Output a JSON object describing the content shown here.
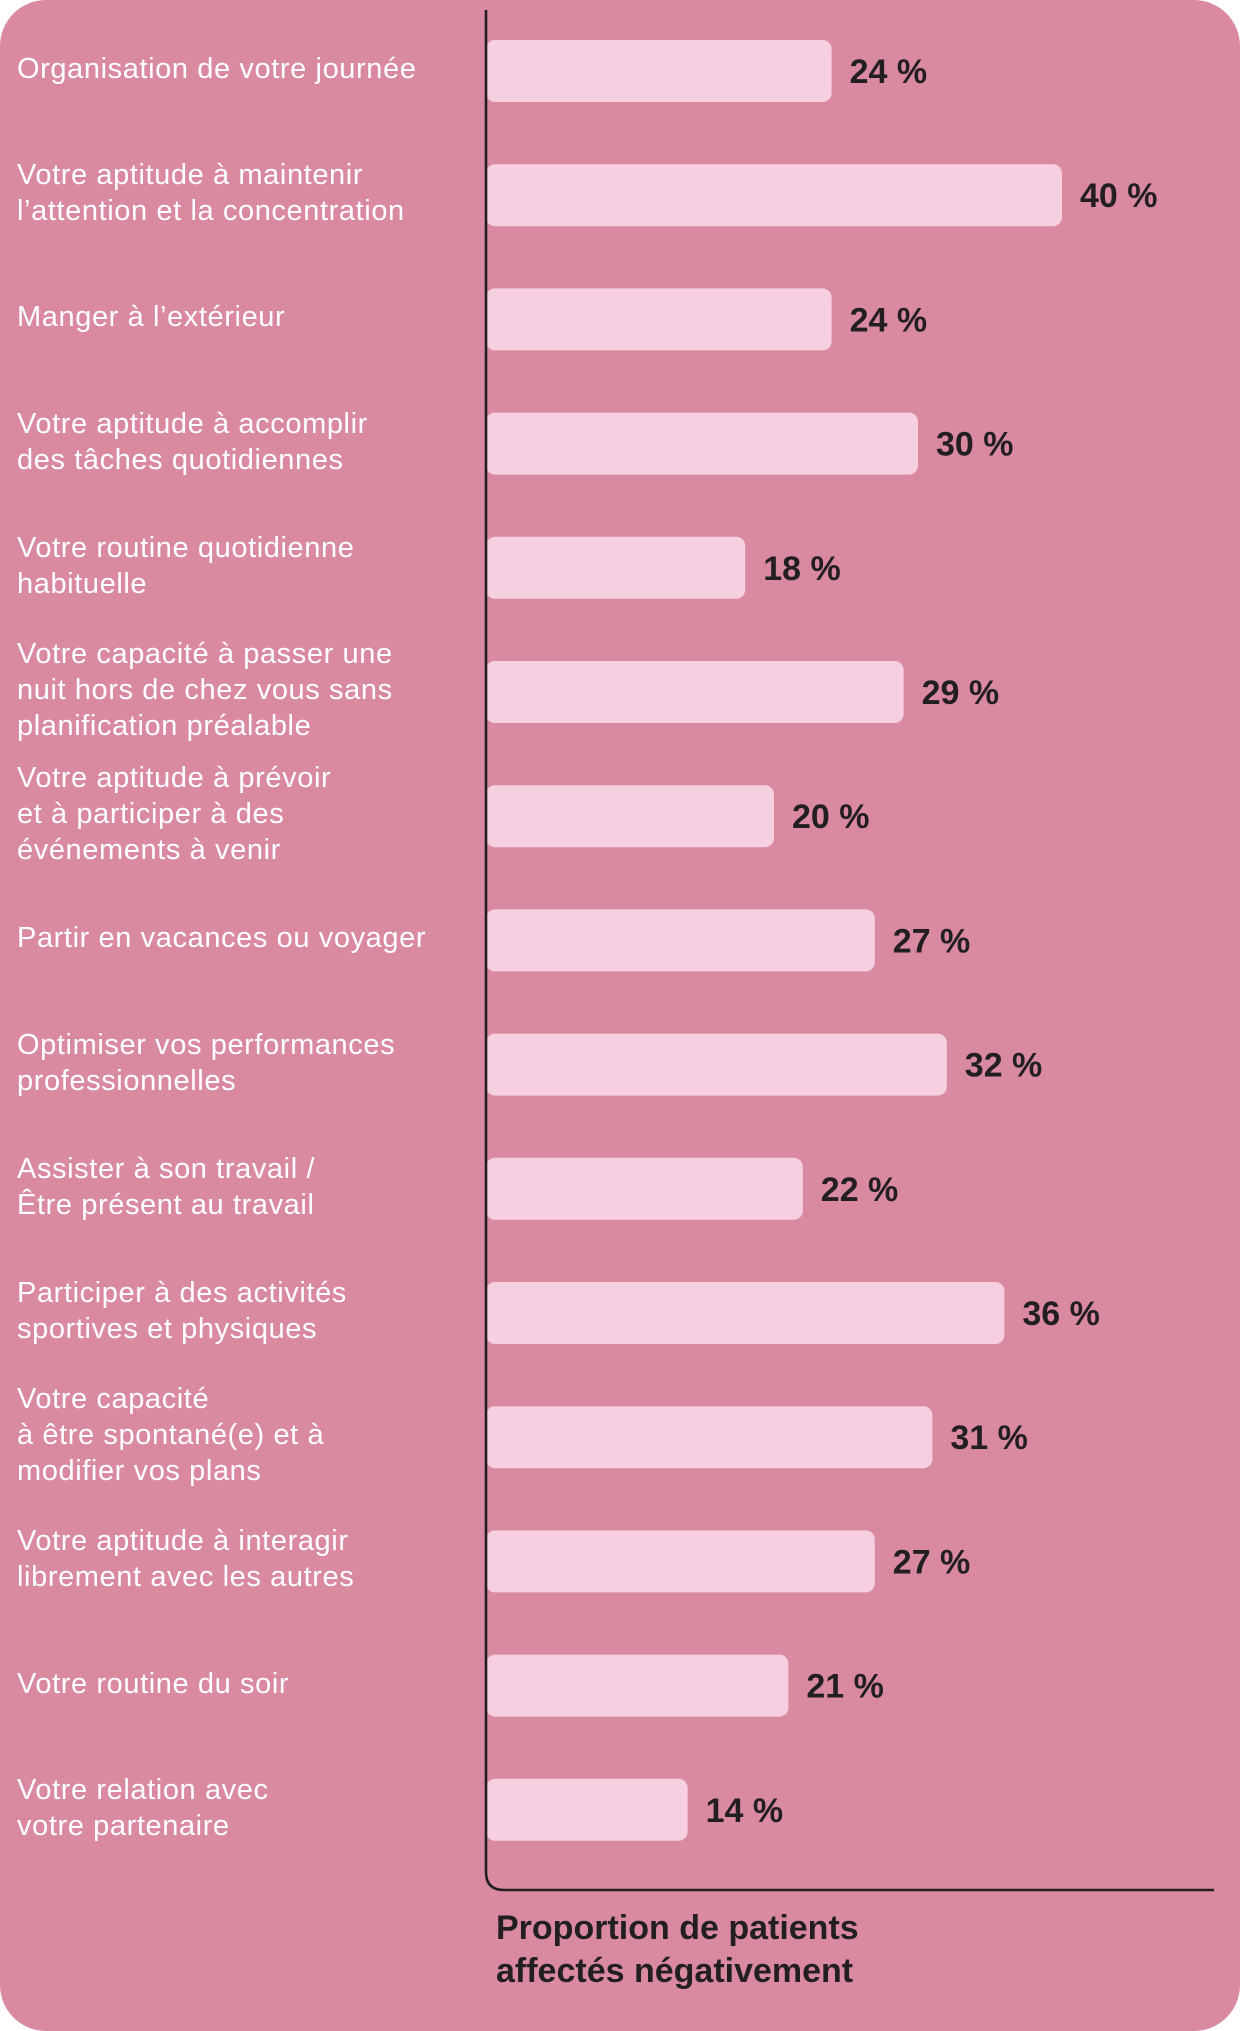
{
  "chart_data": {
    "type": "bar",
    "orientation": "horizontal",
    "categories": [
      "Organisation de votre journée",
      "Votre aptitude à maintenir\nl’attention et la concentration",
      "Manger à l’extérieur",
      "Votre aptitude à accomplir\ndes tâches quotidiennes",
      "Votre routine quotidienne\nhabituelle",
      "Votre capacité à passer une\nnuit hors de chez vous sans\nplanification préalable",
      "Votre aptitude à prévoir\net à participer à des\névénements à venir",
      "Partir en vacances ou voyager",
      "Optimiser vos performances\nprofessionnelles",
      "Assister à son travail /\nÊtre présent au travail",
      "Participer à des activités\nsportives et physiques",
      "Votre capacité\nà être spontané(e) et à\nmodifier vos plans",
      "Votre aptitude à interagir\nlibrement avec les autres",
      "Votre routine du soir",
      "Votre relation avec\nvotre partenaire"
    ],
    "values": [
      24,
      40,
      24,
      30,
      18,
      29,
      20,
      27,
      32,
      22,
      36,
      31,
      27,
      21,
      14
    ],
    "value_labels": [
      "24 %",
      "40 %",
      "24 %",
      "30 %",
      "18 %",
      "29 %",
      "20 %",
      "27 %",
      "32 %",
      "22 %",
      "36 %",
      "31 %",
      "27 %",
      "21 %",
      "14 %"
    ],
    "xlabel": "Proportion de patients\naffectés négativement",
    "ylabel": "",
    "xlim": [
      0,
      50
    ],
    "grid": false,
    "legend": "none"
  },
  "colors": {
    "background": "#d98aa1",
    "bar": "#f6d0e0",
    "label_text": "#ffffff",
    "value_text": "#231f20",
    "axis": "#231f20"
  }
}
